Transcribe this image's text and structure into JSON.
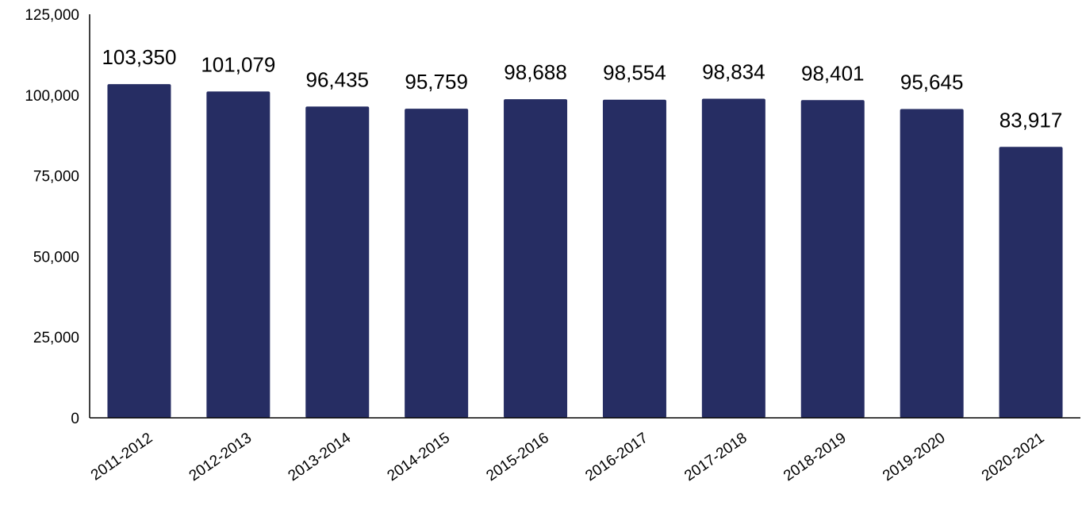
{
  "chart_data": {
    "type": "bar",
    "categories": [
      "2011-2012",
      "2012-2013",
      "2013-2014",
      "2014-2015",
      "2015-2016",
      "2016-2017",
      "2017-2018",
      "2018-2019",
      "2019-2020",
      "2020-2021"
    ],
    "values": [
      103350,
      101079,
      96435,
      95759,
      98688,
      98554,
      98834,
      98401,
      95645,
      83917
    ],
    "data_labels": [
      "103,350",
      "101,079",
      "96,435",
      "95,759",
      "98,688",
      "98,554",
      "98,834",
      "98,401",
      "95,645",
      "83,917"
    ],
    "y_ticks": [
      0,
      25000,
      50000,
      75000,
      100000,
      125000
    ],
    "y_tick_labels": [
      "0",
      "25,000",
      "50,000",
      "75,000",
      "100,000",
      "125,000"
    ],
    "ylim": [
      0,
      125000
    ],
    "title": "",
    "xlabel": "",
    "ylabel": "",
    "grid": false,
    "legend": "none",
    "bar_color": "#262d63",
    "axis_color": "#000000"
  }
}
